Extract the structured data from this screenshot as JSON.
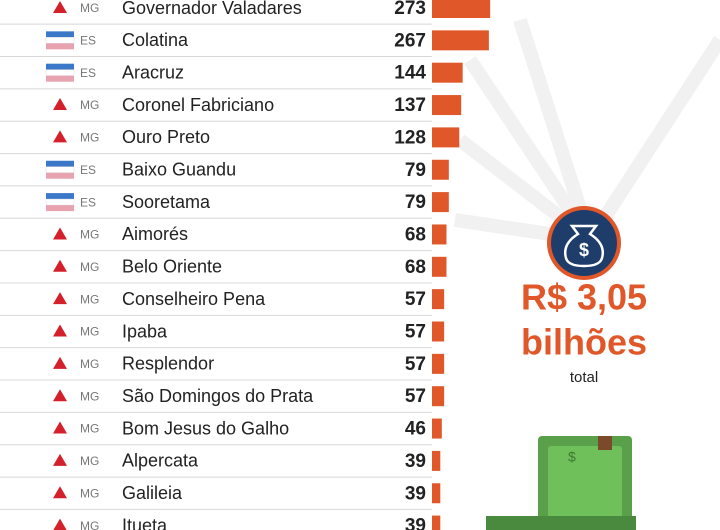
{
  "chart_data": {
    "type": "hbar",
    "categories": [
      "Governador Valadares",
      "Colatina",
      "Aracruz",
      "Coronel Fabriciano",
      "Ouro Preto",
      "Baixo Guandu",
      "Sooretama",
      "Aimorés",
      "Belo Oriente",
      "Conselheiro Pena",
      "Ipaba",
      "Resplendor",
      "São Domingos do Prata",
      "Bom Jesus do Galho",
      "Alpercata",
      "Galileia",
      "Itueta"
    ],
    "states": [
      "MG",
      "ES",
      "ES",
      "MG",
      "MG",
      "ES",
      "ES",
      "MG",
      "MG",
      "MG",
      "MG",
      "MG",
      "MG",
      "MG",
      "MG",
      "MG",
      "MG"
    ],
    "values": [
      273,
      267,
      144,
      137,
      128,
      79,
      79,
      68,
      68,
      57,
      57,
      57,
      57,
      46,
      39,
      39,
      39
    ],
    "color": "#e0582a",
    "total_amount": "R$ 3,05",
    "total_unit": "bilhões",
    "total_label": "total"
  }
}
